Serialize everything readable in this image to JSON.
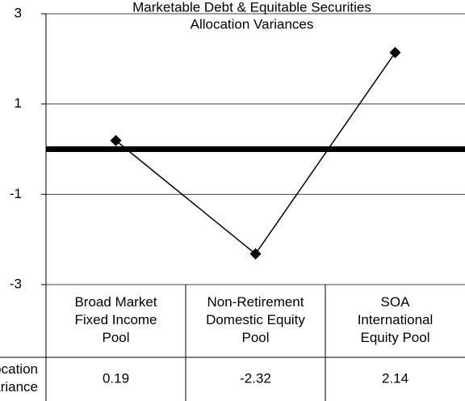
{
  "chart_data": {
    "type": "line",
    "title": [
      "Marketable Debt & Equitable Securities",
      "Allocation Variances"
    ],
    "categories": [
      "Broad Market\nFixed Income\nPool",
      "Non-Retirement\nDomestic Equity\nPool",
      "SOA\nInternational\nEquity Pool"
    ],
    "series": [
      {
        "name": "Allocation Variance",
        "color": "#000000",
        "values": [
          0.19,
          -2.32,
          2.14
        ]
      }
    ],
    "ylim": [
      -3,
      3
    ],
    "yticks": [
      3,
      1,
      -1,
      -3
    ],
    "grid": true
  }
}
